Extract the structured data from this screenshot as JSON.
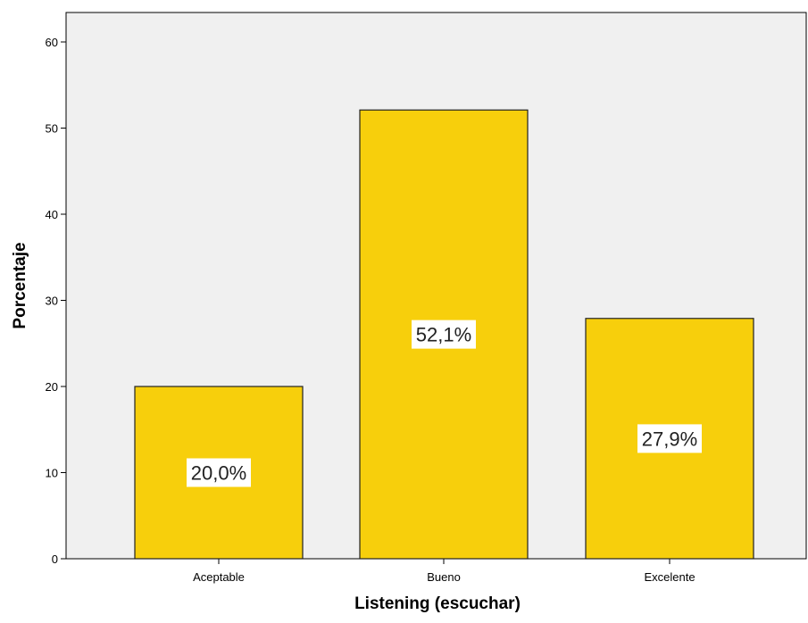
{
  "chart_data": {
    "type": "bar",
    "categories": [
      "Aceptable",
      "Bueno",
      "Excelente"
    ],
    "values": [
      20.0,
      52.1,
      27.9
    ],
    "data_labels": [
      "20,0%",
      "52,1%",
      "27,9%"
    ],
    "xlabel": "Listening (escuchar)",
    "ylabel": "Porcentaje",
    "ylim": [
      0,
      60
    ],
    "yticks": [
      0,
      10,
      20,
      30,
      40,
      50,
      60
    ],
    "grid": false,
    "colors": {
      "plot_background": "#F0F0F0",
      "bar_fill": "#F7CF0C",
      "bar_stroke": "#222222",
      "axis": "#000000",
      "label_box": "#FFFFFF"
    }
  }
}
